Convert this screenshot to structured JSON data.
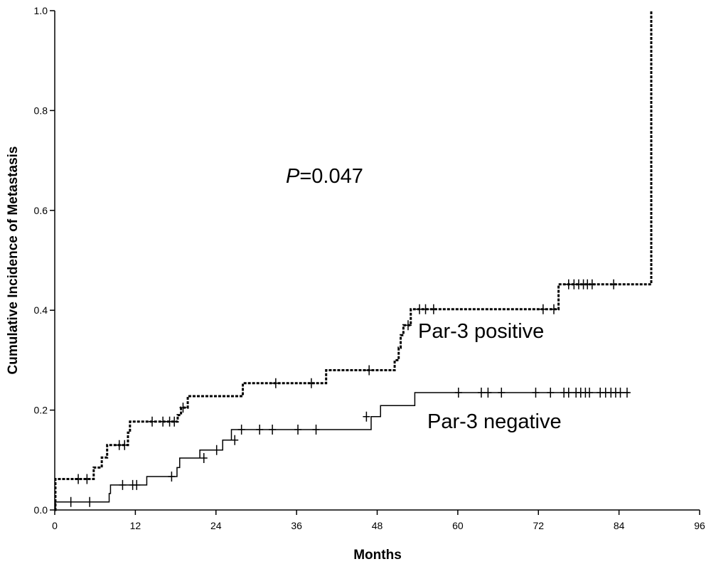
{
  "chart_data": {
    "type": "line",
    "subtype": "kaplan-meier-cumulative-incidence",
    "xlabel": "Months",
    "ylabel": "Cumulative Incidence of Metastasis",
    "xlim": [
      0,
      96
    ],
    "ylim": [
      0.0,
      1.0
    ],
    "x_ticks": [
      "0",
      "12",
      "24",
      "36",
      "48",
      "60",
      "72",
      "84",
      "96"
    ],
    "y_ticks": [
      "0.0",
      "0.2",
      "0.4",
      "0.6",
      "0.8",
      "1.0"
    ],
    "grid": false,
    "annotations": {
      "p_value_prefix": "P",
      "p_value_rest": "=0.047"
    },
    "series": [
      {
        "name": "Par-3 positive",
        "line_style": "dashed",
        "steps": [
          [
            0,
            0.0
          ],
          [
            0.1,
            0.062
          ],
          [
            5.8,
            0.085
          ],
          [
            7,
            0.105
          ],
          [
            7.8,
            0.13
          ],
          [
            10.9,
            0.155
          ],
          [
            11.2,
            0.177
          ],
          [
            18.3,
            0.19
          ],
          [
            18.8,
            0.205
          ],
          [
            19.8,
            0.228
          ],
          [
            28,
            0.254
          ],
          [
            40.4,
            0.28
          ],
          [
            50.6,
            0.3
          ],
          [
            51.2,
            0.325
          ],
          [
            51.5,
            0.35
          ],
          [
            51.9,
            0.37
          ],
          [
            53,
            0.402
          ],
          [
            75,
            0.452
          ],
          [
            88.8,
            1.0
          ]
        ],
        "end_x": 88.8,
        "censored": [
          [
            3.5,
            0.062
          ],
          [
            4.8,
            0.062
          ],
          [
            9.6,
            0.13
          ],
          [
            10.4,
            0.13
          ],
          [
            14.5,
            0.177
          ],
          [
            16.1,
            0.177
          ],
          [
            17.1,
            0.177
          ],
          [
            17.8,
            0.177
          ],
          [
            19.1,
            0.205
          ],
          [
            32.9,
            0.254
          ],
          [
            38.2,
            0.254
          ],
          [
            46.8,
            0.28
          ],
          [
            52.6,
            0.37
          ],
          [
            54.3,
            0.402
          ],
          [
            55.2,
            0.402
          ],
          [
            56.4,
            0.402
          ],
          [
            72.7,
            0.402
          ],
          [
            74.3,
            0.402
          ],
          [
            76.5,
            0.452
          ],
          [
            77.3,
            0.452
          ],
          [
            78,
            0.452
          ],
          [
            78.7,
            0.452
          ],
          [
            79.3,
            0.452
          ],
          [
            80,
            0.452
          ],
          [
            83.2,
            0.452
          ]
        ],
        "label": "Par-3 positive"
      },
      {
        "name": "Par-3 negative",
        "line_style": "solid",
        "steps": [
          [
            0,
            0.0
          ],
          [
            0.1,
            0.016
          ],
          [
            8.1,
            0.033
          ],
          [
            8.3,
            0.05
          ],
          [
            13.7,
            0.067
          ],
          [
            18.2,
            0.085
          ],
          [
            18.6,
            0.104
          ],
          [
            21.6,
            0.12
          ],
          [
            25,
            0.14
          ],
          [
            26.3,
            0.161
          ],
          [
            47.1,
            0.187
          ],
          [
            48.5,
            0.209
          ],
          [
            53.6,
            0.235
          ]
        ],
        "end_x": 85.5,
        "censored": [
          [
            2.4,
            0.016
          ],
          [
            5.2,
            0.016
          ],
          [
            10.1,
            0.05
          ],
          [
            11.6,
            0.05
          ],
          [
            12.2,
            0.05
          ],
          [
            17.4,
            0.067
          ],
          [
            22.2,
            0.104
          ],
          [
            24.1,
            0.12
          ],
          [
            26.8,
            0.14
          ],
          [
            27.8,
            0.161
          ],
          [
            30.5,
            0.161
          ],
          [
            32.4,
            0.161
          ],
          [
            36.2,
            0.161
          ],
          [
            38.9,
            0.161
          ],
          [
            46.4,
            0.187
          ],
          [
            60.1,
            0.235
          ],
          [
            63.5,
            0.235
          ],
          [
            64.5,
            0.235
          ],
          [
            66.5,
            0.235
          ],
          [
            71.6,
            0.235
          ],
          [
            73.8,
            0.235
          ],
          [
            75.8,
            0.235
          ],
          [
            76.5,
            0.235
          ],
          [
            77.6,
            0.235
          ],
          [
            78.3,
            0.235
          ],
          [
            79,
            0.235
          ],
          [
            79.6,
            0.235
          ],
          [
            81.2,
            0.235
          ],
          [
            82,
            0.235
          ],
          [
            82.8,
            0.235
          ],
          [
            83.5,
            0.235
          ],
          [
            84.2,
            0.235
          ],
          [
            85.2,
            0.235
          ]
        ],
        "label": "Par-3 negative"
      }
    ]
  }
}
